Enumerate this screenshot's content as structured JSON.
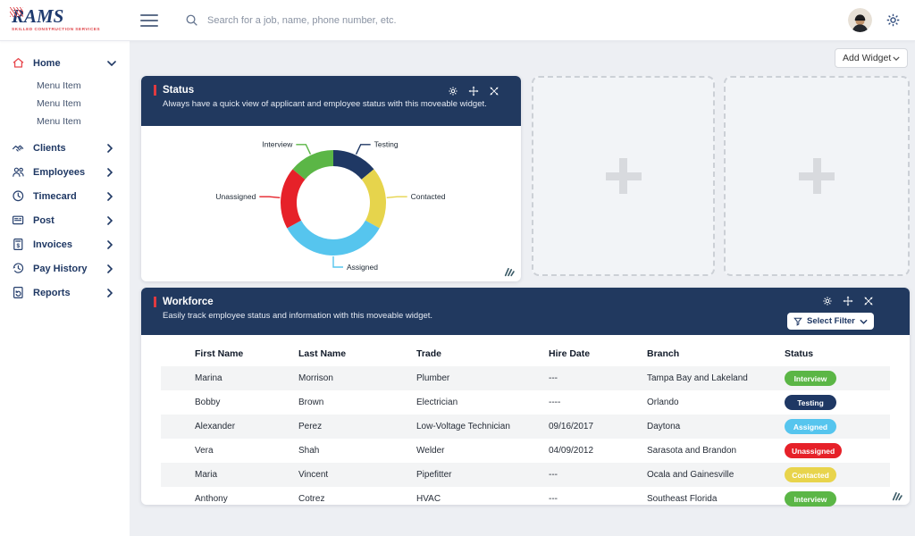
{
  "topbar": {
    "logo_title": "RAMS",
    "logo_subtitle": "SKILLED CONSTRUCTION SERVICES",
    "search_placeholder": "Search for a job, name, phone number, etc."
  },
  "sidebar": {
    "items": [
      {
        "icon": "home",
        "label": "Home",
        "chevron": "down",
        "children": [
          "Menu Item",
          "Menu Item",
          "Menu Item"
        ]
      },
      {
        "icon": "clients",
        "label": "Clients",
        "chevron": "right"
      },
      {
        "icon": "employees",
        "label": "Employees",
        "chevron": "right"
      },
      {
        "icon": "timecard",
        "label": "Timecard",
        "chevron": "right"
      },
      {
        "icon": "post",
        "label": "Post",
        "chevron": "right"
      },
      {
        "icon": "invoices",
        "label": "Invoices",
        "chevron": "right"
      },
      {
        "icon": "pay-history",
        "label": "Pay History",
        "chevron": "right"
      },
      {
        "icon": "reports",
        "label": "Reports",
        "chevron": "right"
      }
    ]
  },
  "toolbar": {
    "add_widget_label": "Add Widget"
  },
  "status_widget": {
    "title": "Status",
    "subtitle": "Always have a quick view of applicant and employee status with this moveable widget."
  },
  "chart_data": {
    "type": "pie",
    "style": "donut",
    "title": "Status",
    "labels": [
      "Testing",
      "Contacted",
      "Assigned",
      "Unassigned",
      "Interview"
    ],
    "values": [
      14,
      19,
      34,
      19,
      14
    ],
    "colors": [
      "#1f3864",
      "#e6d44c",
      "#56c5ee",
      "#e62129",
      "#5bb646"
    ],
    "start_angle_deg": 0,
    "direction": "clockwise",
    "legend": "callout-labels"
  },
  "workforce_widget": {
    "title": "Workforce",
    "subtitle": "Easily track employee status and information with this moveable widget.",
    "filter_label": "Select Filter",
    "columns": [
      "First Name",
      "Last Name",
      "Trade",
      "Hire Date",
      "Branch",
      "Status"
    ],
    "rows": [
      [
        "Marina",
        "Morrison",
        "Plumber",
        "---",
        "Tampa Bay and Lakeland",
        "Interview"
      ],
      [
        "Bobby",
        "Brown",
        "Electrician",
        "----",
        "Orlando",
        "Testing"
      ],
      [
        "Alexander",
        "Perez",
        "Low-Voltage Technician",
        "09/16/2017",
        "Daytona",
        "Assigned"
      ],
      [
        "Vera",
        "Shah",
        "Welder",
        "04/09/2012",
        "Sarasota and Brandon",
        "Unassigned"
      ],
      [
        "Maria",
        "Vincent",
        "Pipefitter",
        "---",
        "Ocala and Gainesville",
        "Contacted"
      ],
      [
        "Anthony",
        "Cotrez",
        "HVAC",
        "---",
        "Southeast Florida",
        "Interview"
      ]
    ],
    "status_colors": {
      "Interview": "#5bb646",
      "Testing": "#1f3864",
      "Assigned": "#56c5ee",
      "Unassigned": "#e62129",
      "Contacted": "#e8d44c"
    }
  }
}
